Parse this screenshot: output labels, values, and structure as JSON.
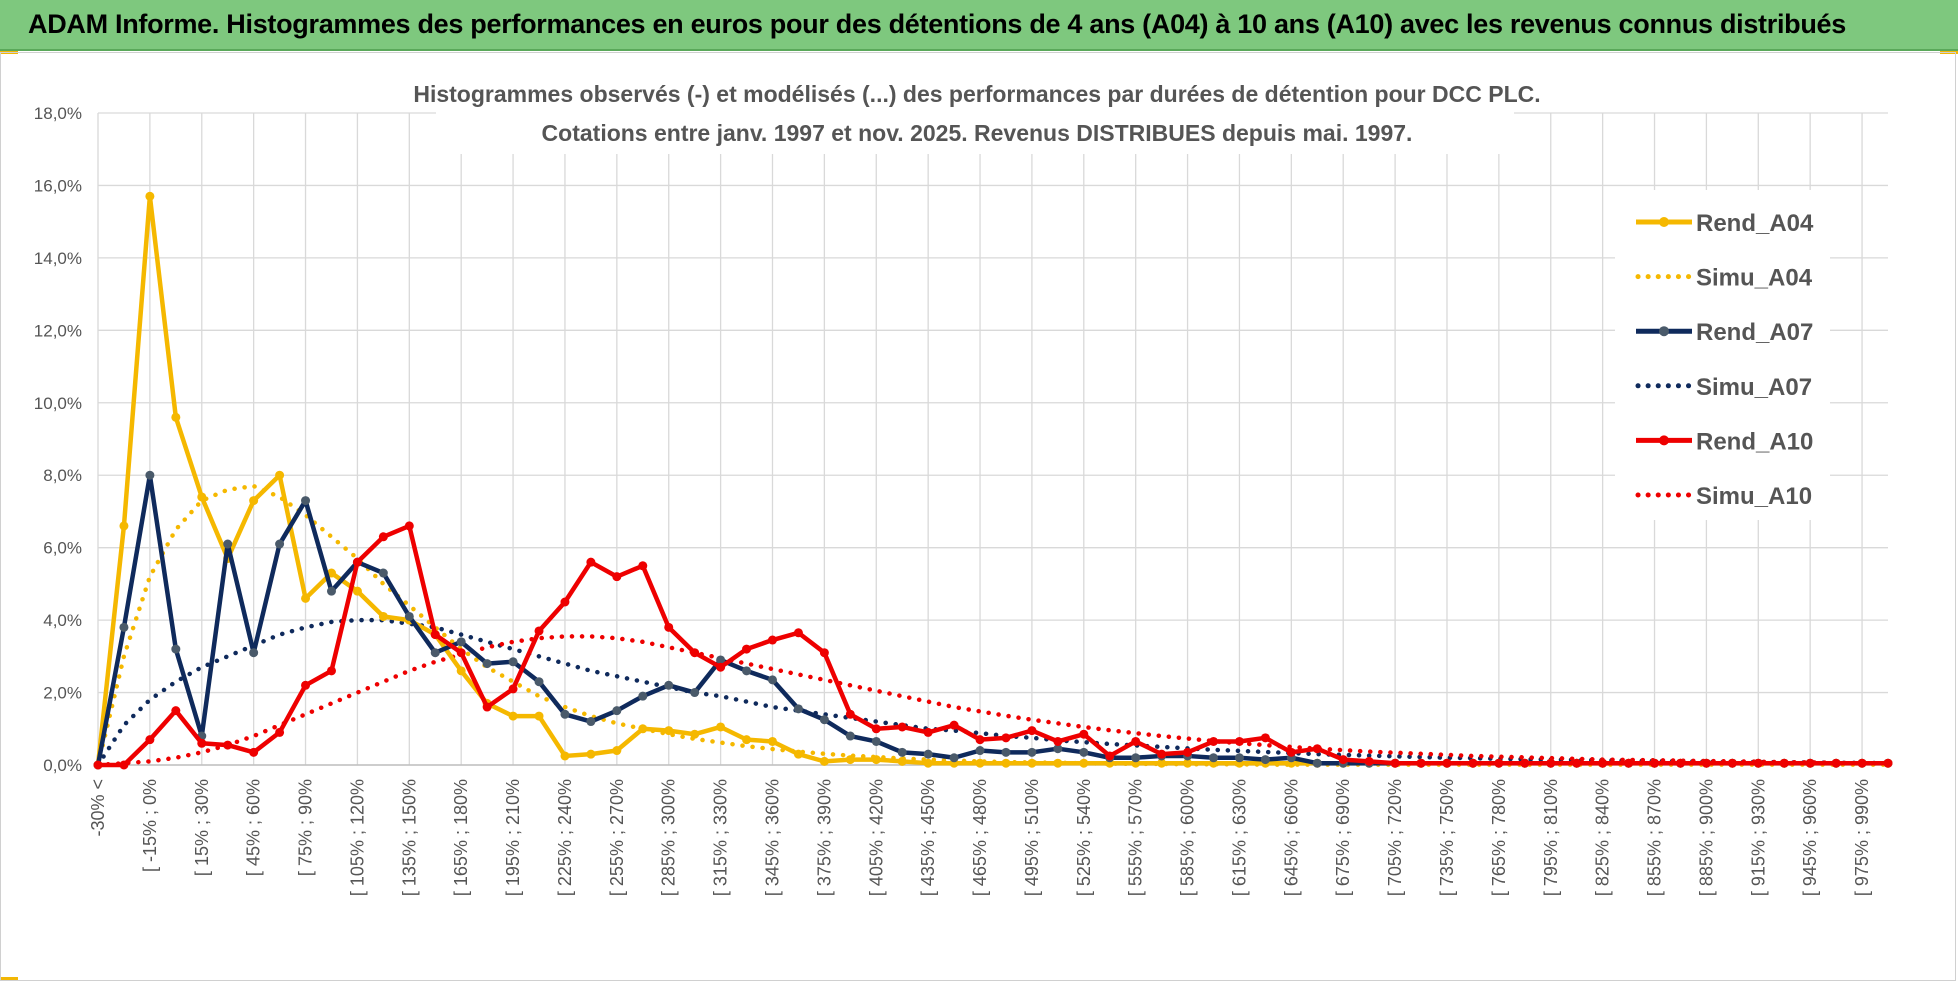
{
  "banner": {
    "title": "ADAM Informe. Histogrammes des performances en euros pour des détentions de 4 ans (A04) à 10 ans (A10) avec les revenus connus distribués"
  },
  "colors": {
    "banner_bg": "#7ec87e",
    "A04": "#f5b800",
    "A07": "#0f2a5c",
    "A07_marker": "#4a5a6a",
    "A10": "#ee0000",
    "grid": "#d9d9d9",
    "text": "#555555"
  },
  "chart_data": {
    "type": "line",
    "title": "Histogrammes observés (-) et modélisés (...) des performances par durées de détention pour DCC PLC.",
    "subtitle": "Cotations entre janv. 1997 et nov. 2025. Revenus DISTRIBUES depuis mai. 1997.",
    "ylim": [
      0,
      18
    ],
    "y_ticks": [
      "0,0%",
      "2,0%",
      "4,0%",
      "6,0%",
      "8,0%",
      "10,0%",
      "12,0%",
      "14,0%",
      "16,0%",
      "18,0%"
    ],
    "grid": true,
    "legend_position": "right",
    "x_tick_labels": [
      "-30% <",
      "[ -15% ; 0%",
      "[ 15% ; 30%",
      "[ 45% ; 60%",
      "[ 75% ; 90%",
      "[ 105% ; 120%",
      "[ 135% ; 150%",
      "[ 165% ; 180%",
      "[ 195% ; 210%",
      "[ 225% ; 240%",
      "[ 255% ; 270%",
      "[ 285% ; 300%",
      "[ 315% ; 330%",
      "[ 345% ; 360%",
      "[ 375% ; 390%",
      "[ 405% ; 420%",
      "[ 435% ; 450%",
      "[ 465% ; 480%",
      "[ 495% ; 510%",
      "[ 525% ; 540%",
      "[ 555% ; 570%",
      "[ 585% ; 600%",
      "[ 615% ; 630%",
      "[ 645% ; 660%",
      "[ 675% ; 690%",
      "[ 705% ; 720%",
      "[ 735% ; 750%",
      "[ 765% ; 780%",
      "[ 795% ; 810%",
      "[ 825% ; 840%",
      "[ 855% ; 870%",
      "[ 885% ; 900%",
      "[ 915% ; 930%",
      "[ 945% ; 960%",
      "[ 975% ; 990%"
    ],
    "series": [
      {
        "name": "Rend_A04",
        "style": "solid",
        "color": "#f5b800",
        "values": [
          0,
          6.6,
          15.7,
          9.6,
          7.4,
          5.7,
          7.3,
          8.0,
          4.6,
          5.3,
          4.8,
          4.1,
          4.0,
          3.6,
          2.6,
          1.7,
          1.35,
          1.35,
          0.25,
          0.3,
          0.4,
          1.0,
          0.95,
          0.85,
          1.05,
          0.7,
          0.65,
          0.3,
          0.1,
          0.15,
          0.15,
          0.1,
          0.05,
          0.05,
          0.05,
          0.05,
          0.05,
          0.05,
          0.05,
          0.05,
          0.05,
          0.05,
          0.05,
          0.05,
          0.05,
          0.05,
          0.05,
          0.05,
          0.05,
          0.05,
          0.05,
          0.05,
          0.05,
          0.05,
          0.05,
          0.05,
          0.05,
          0.05,
          0.05,
          0.05,
          0.05,
          0.05,
          0.05,
          0.05,
          0.05,
          0.05,
          0.05,
          0.05,
          0.05,
          0.05
        ]
      },
      {
        "name": "Simu_A04",
        "style": "dotted",
        "color": "#f5b800",
        "values": [
          0,
          3.0,
          5.2,
          6.5,
          7.3,
          7.6,
          7.7,
          7.4,
          6.9,
          6.3,
          5.7,
          5.0,
          4.4,
          3.8,
          3.2,
          2.7,
          2.3,
          1.9,
          1.6,
          1.35,
          1.15,
          1.0,
          0.85,
          0.72,
          0.62,
          0.52,
          0.44,
          0.37,
          0.31,
          0.26,
          0.22,
          0.18,
          0.15,
          0.12,
          0.1,
          0.08,
          0.07,
          0.06,
          0.05,
          0.04,
          0.03,
          0.03,
          0.02,
          0.02,
          0.02,
          0.01,
          0.01,
          0.01,
          0.01,
          0.01,
          0.01,
          0.01,
          0.01,
          0.01,
          0.01,
          0.01,
          0.01,
          0.01,
          0.01,
          0.01,
          0.01,
          0.01,
          0.01,
          0.01,
          0.01,
          0.01,
          0.01,
          0.01,
          0.01,
          0.01
        ]
      },
      {
        "name": "Rend_A07",
        "style": "solid",
        "color": "#0f2a5c",
        "values": [
          0,
          3.8,
          8.0,
          3.2,
          0.8,
          6.1,
          3.1,
          6.1,
          7.3,
          4.8,
          5.6,
          5.3,
          4.1,
          3.1,
          3.4,
          2.8,
          2.85,
          2.3,
          1.4,
          1.2,
          1.5,
          1.9,
          2.2,
          2.0,
          2.9,
          2.6,
          2.35,
          1.55,
          1.25,
          0.8,
          0.65,
          0.35,
          0.3,
          0.2,
          0.4,
          0.35,
          0.35,
          0.45,
          0.35,
          0.2,
          0.2,
          0.25,
          0.25,
          0.2,
          0.2,
          0.15,
          0.2,
          0.05,
          0.05,
          0.05,
          0.05,
          0.05,
          0.05,
          0.05,
          0.05,
          0.05,
          0.05,
          0.05,
          0.05,
          0.05,
          0.05,
          0.05,
          0.05,
          0.05,
          0.05,
          0.05,
          0.05,
          0.05,
          0.05,
          0.05
        ]
      },
      {
        "name": "Simu_A07",
        "style": "dotted",
        "color": "#0f2a5c",
        "values": [
          0,
          1.1,
          1.8,
          2.3,
          2.7,
          3.0,
          3.3,
          3.6,
          3.8,
          3.95,
          4.0,
          4.0,
          3.9,
          3.8,
          3.6,
          3.4,
          3.2,
          3.0,
          2.8,
          2.6,
          2.45,
          2.3,
          2.15,
          2.0,
          1.9,
          1.75,
          1.6,
          1.5,
          1.4,
          1.3,
          1.2,
          1.1,
          1.0,
          0.95,
          0.88,
          0.8,
          0.75,
          0.68,
          0.63,
          0.58,
          0.54,
          0.5,
          0.46,
          0.42,
          0.39,
          0.36,
          0.33,
          0.3,
          0.28,
          0.26,
          0.24,
          0.22,
          0.2,
          0.19,
          0.17,
          0.16,
          0.15,
          0.14,
          0.13,
          0.12,
          0.11,
          0.1,
          0.09,
          0.08,
          0.08,
          0.07,
          0.07,
          0.06,
          0.06,
          0.05
        ]
      },
      {
        "name": "Rend_A10",
        "style": "solid",
        "color": "#ee0000",
        "values": [
          0,
          0,
          0.7,
          1.5,
          0.6,
          0.55,
          0.35,
          0.9,
          2.2,
          2.6,
          5.6,
          6.3,
          6.6,
          3.6,
          3.1,
          1.6,
          2.1,
          3.7,
          4.5,
          5.6,
          5.2,
          5.5,
          3.8,
          3.1,
          2.7,
          3.2,
          3.45,
          3.65,
          3.1,
          1.4,
          1.0,
          1.05,
          0.9,
          1.1,
          0.7,
          0.75,
          0.95,
          0.65,
          0.85,
          0.25,
          0.65,
          0.3,
          0.35,
          0.65,
          0.65,
          0.75,
          0.35,
          0.45,
          0.15,
          0.1,
          0.05,
          0.05,
          0.05,
          0.05,
          0.05,
          0.05,
          0.05,
          0.05,
          0.05,
          0.05,
          0.05,
          0.05,
          0.05,
          0.05,
          0.05,
          0.05,
          0.05,
          0.05,
          0.05,
          0.05
        ]
      },
      {
        "name": "Simu_A10",
        "style": "dotted",
        "color": "#ee0000",
        "values": [
          0,
          0.05,
          0.1,
          0.2,
          0.35,
          0.55,
          0.8,
          1.1,
          1.4,
          1.7,
          2.0,
          2.3,
          2.6,
          2.85,
          3.05,
          3.25,
          3.4,
          3.5,
          3.55,
          3.55,
          3.5,
          3.4,
          3.25,
          3.1,
          2.95,
          2.8,
          2.65,
          2.5,
          2.35,
          2.2,
          2.05,
          1.9,
          1.75,
          1.6,
          1.48,
          1.36,
          1.25,
          1.15,
          1.05,
          0.96,
          0.88,
          0.8,
          0.73,
          0.66,
          0.6,
          0.55,
          0.5,
          0.45,
          0.41,
          0.37,
          0.34,
          0.31,
          0.28,
          0.25,
          0.23,
          0.21,
          0.19,
          0.17,
          0.15,
          0.14,
          0.13,
          0.12,
          0.11,
          0.1,
          0.09,
          0.08,
          0.07,
          0.06,
          0.05,
          0.04
        ]
      }
    ]
  }
}
